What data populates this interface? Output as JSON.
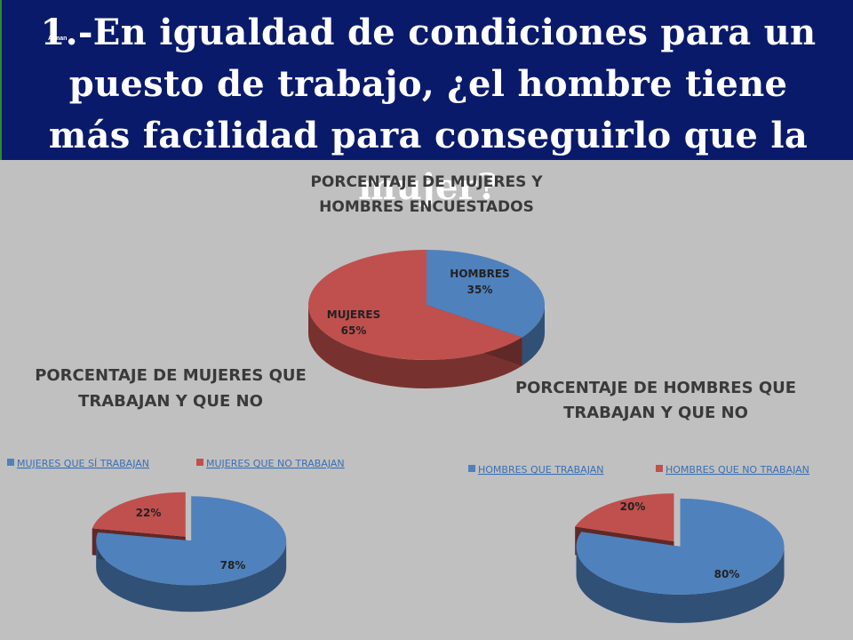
{
  "slide": {
    "author": "Aiman",
    "question": "1.-En igualdad de condiciones para un puesto de trabajo, ¿el hombre tiene más facilidad para conseguirlo que la mujer?"
  },
  "colors": {
    "banner": "#0a1a6b",
    "background": "#c0c0c0",
    "blue": "#4f81bd",
    "red": "#c0504d"
  },
  "chart_data": [
    {
      "type": "pie",
      "title_lines": [
        "PORCENTAJE DE MUJERES Y",
        "HOMBRES ENCUESTADOS"
      ],
      "labels": [
        "HOMBRES",
        "MUJERES"
      ],
      "values": [
        35,
        65
      ],
      "data_labels": [
        "35%",
        "65%"
      ],
      "legend": "none",
      "three_d": true
    },
    {
      "type": "pie",
      "title_lines": [
        "PORCENTAJE DE MUJERES QUE",
        "TRABAJAN Y QUE NO"
      ],
      "labels": [
        "MUJERES QUE SÍ TRABAJAN",
        "MUJERES QUE NO TRABAJAN"
      ],
      "values": [
        78,
        22
      ],
      "data_labels": [
        "78%",
        "22%"
      ],
      "legend": "top",
      "three_d": true,
      "exploded": true
    },
    {
      "type": "pie",
      "title_lines": [
        "PORCENTAJE DE HOMBRES QUE",
        "TRABAJAN Y QUE NO"
      ],
      "labels": [
        "HOMBRES QUE TRABAJAN",
        "HOMBRES QUE NO TRABAJAN"
      ],
      "values": [
        80,
        20
      ],
      "data_labels": [
        "80%",
        "20%"
      ],
      "legend": "top",
      "three_d": true,
      "exploded": true
    }
  ]
}
